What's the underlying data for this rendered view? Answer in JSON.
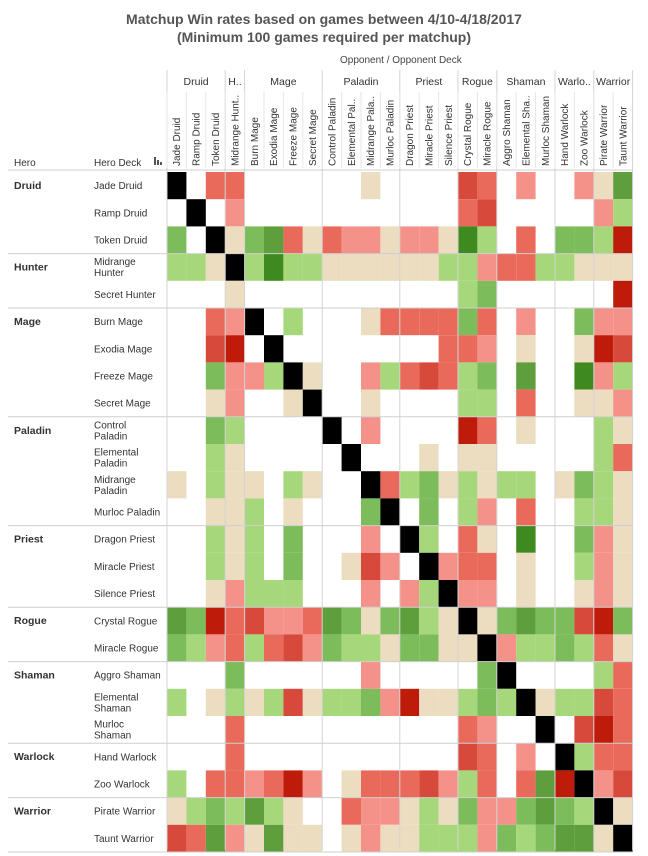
{
  "title_line1": "Matchup Win rates based on games between 4/10-4/18/2017",
  "title_line2": "(Minimum 100 games required per matchup)",
  "column_header": "Opponent  /  Opponent Deck",
  "row_header_hero": "Hero",
  "row_header_deck": "Hero Deck",
  "colors": {
    "self": "#000000",
    "strong_loss": "#bf1b0a",
    "loss": "#d7493a",
    "mild_loss": "#e96a5a",
    "slight_loss": "#f4928a",
    "even": "#ecdcc0",
    "slight_win": "#a6d77a",
    "win": "#7cbc5a",
    "strong_win": "#5e9e3c",
    "very_strong_win": "#3f8a1e"
  },
  "chart_data": {
    "type": "heatmap",
    "title": "Matchup Win rates based on games between 4/10-4/18/2017 (Minimum 100 games required per matchup)",
    "value_scale": "color buckets: -4 strong loss ... 0 even ... +4 strong win; S = same deck; empty = under 100 games",
    "heroes": [
      {
        "name": "Druid",
        "short": "Druid",
        "decks": [
          "Jade Druid",
          "Ramp Druid",
          "Token Druid"
        ]
      },
      {
        "name": "Hunter",
        "short": "H..",
        "decks": [
          "Midrange Hunter",
          "Secret Hunter"
        ]
      },
      {
        "name": "Mage",
        "short": "Mage",
        "decks": [
          "Burn Mage",
          "Exodia Mage",
          "Freeze Mage",
          "Secret Mage"
        ]
      },
      {
        "name": "Paladin",
        "short": "Paladin",
        "decks": [
          "Control Paladin",
          "Elemental Paladin",
          "Midrange Paladin",
          "Murloc Paladin"
        ]
      },
      {
        "name": "Priest",
        "short": "Priest",
        "decks": [
          "Dragon Priest",
          "Miracle Priest",
          "Silence Priest"
        ]
      },
      {
        "name": "Rogue",
        "short": "Rogue",
        "decks": [
          "Crystal Rogue",
          "Miracle Rogue"
        ]
      },
      {
        "name": "Shaman",
        "short": "Shaman",
        "decks": [
          "Aggro Shaman",
          "Elemental Shaman",
          "Murloc Shaman"
        ]
      },
      {
        "name": "Warlock",
        "short": "Warlo..",
        "decks": [
          "Hand Warlock",
          "Zoo Warlock"
        ]
      },
      {
        "name": "Warrior",
        "short": "Warrior",
        "decks": [
          "Pirate Warrior",
          "Taunt Warrior"
        ]
      }
    ],
    "row_labels": [
      "Jade Druid",
      "Ramp Druid",
      "Token Druid",
      "Midrange Hunter",
      "Secret Hunter",
      "Burn Mage",
      "Exodia Mage",
      "Freeze Mage",
      "Secret Mage",
      "Control Paladin",
      "Elemental Paladin",
      "Midrange Paladin",
      "Murloc Paladin",
      "Dragon Priest",
      "Miracle Priest",
      "Silence Priest",
      "Crystal Rogue",
      "Miracle Rogue",
      "Aggro Shaman",
      "Elemental Shaman",
      "Murloc Shaman",
      "Hand Warlock",
      "Zoo Warlock",
      "Pirate Warrior",
      "Taunt Warrior"
    ],
    "row_label_lines": [
      [
        "Jade Druid"
      ],
      [
        "Ramp Druid"
      ],
      [
        "Token Druid"
      ],
      [
        "Midrange",
        "Hunter"
      ],
      [
        "Secret Hunter"
      ],
      [
        "Burn Mage"
      ],
      [
        "Exodia Mage"
      ],
      [
        "Freeze Mage"
      ],
      [
        "Secret Mage"
      ],
      [
        "Control",
        "Paladin"
      ],
      [
        "Elemental",
        "Paladin"
      ],
      [
        "Midrange",
        "Paladin"
      ],
      [
        "Murloc Paladin"
      ],
      [
        "Dragon Priest"
      ],
      [
        "Miracle Priest"
      ],
      [
        "Silence Priest"
      ],
      [
        "Crystal Rogue"
      ],
      [
        "Miracle Rogue"
      ],
      [
        "Aggro Shaman"
      ],
      [
        "Elemental",
        "Shaman"
      ],
      [
        "Murloc",
        "Shaman"
      ],
      [
        "Hand Warlock"
      ],
      [
        "Zoo Warlock"
      ],
      [
        "Pirate Warrior"
      ],
      [
        "Taunt Warrior"
      ]
    ],
    "col_labels": [
      "Jade Druid",
      "Ramp Druid",
      "Token Druid",
      "Midrange Hunt..",
      "Burn Mage",
      "Exodia Mage",
      "Freeze Mage",
      "Secret Mage",
      "Control Paladin",
      "Elemental Pal..",
      "Midrange Pala..",
      "Murloc Paladin",
      "Dragon Priest",
      "Miracle Priest",
      "Silence Priest",
      "Crystal Rogue",
      "Miracle Rogue",
      "Aggro Shaman",
      "Elemental Sha..",
      "Murloc Shaman",
      "Hand Warlock",
      "Zoo Warlock",
      "Pirate Warrior",
      "Taunt Warrior"
    ],
    "col_for_row": [
      0,
      1,
      2,
      3,
      null,
      4,
      5,
      6,
      7,
      8,
      9,
      10,
      11,
      12,
      13,
      14,
      15,
      16,
      17,
      18,
      19,
      20,
      21,
      22,
      23
    ],
    "matrix": [
      [
        "S",
        "",
        -2,
        -2,
        "",
        "",
        "",
        "",
        "",
        "",
        0,
        "",
        "",
        "",
        "",
        -3,
        -2,
        "",
        -1,
        "",
        "",
        -1,
        0,
        3
      ],
      [
        "",
        "S",
        "",
        -1,
        "",
        "",
        "",
        "",
        "",
        "",
        "",
        "",
        "",
        "",
        "",
        -2,
        -3,
        "",
        "",
        "",
        "",
        "",
        -1,
        1
      ],
      [
        2,
        "",
        "S",
        0,
        2,
        3,
        -2,
        0,
        -2,
        -1,
        -1,
        0,
        -1,
        -1,
        0,
        4,
        1,
        "",
        -2,
        "",
        2,
        2,
        1,
        -4
      ],
      [
        1,
        1,
        0,
        "S",
        1,
        4,
        1,
        1,
        0,
        0,
        0,
        0,
        0,
        0,
        1,
        1,
        -1,
        -2,
        -2,
        1,
        1,
        0,
        0,
        0
      ],
      [
        "",
        "",
        "",
        0,
        "",
        "",
        "",
        "",
        "",
        "",
        "",
        "",
        "",
        "",
        "",
        1,
        2,
        "",
        "",
        "",
        "",
        "",
        "",
        -4
      ],
      [
        "",
        "",
        -2,
        -1,
        "S",
        "",
        1,
        "",
        "",
        "",
        0,
        -2,
        -2,
        -2,
        -2,
        2,
        -2,
        "",
        -1,
        "",
        "",
        2,
        -1,
        -1
      ],
      [
        "",
        "",
        -3,
        -4,
        "",
        "S",
        "",
        "",
        "",
        "",
        "",
        "",
        "",
        "",
        "-2",
        -2,
        -1,
        "",
        0,
        "",
        "",
        0,
        -4,
        -3
      ],
      [
        "",
        "",
        2,
        -1,
        -1,
        1,
        "S",
        0,
        "",
        "",
        -1,
        1,
        -2,
        -3,
        -2,
        1,
        2,
        "",
        3,
        "",
        "",
        4,
        -1,
        1
      ],
      [
        "",
        "",
        0,
        -1,
        "",
        "",
        0,
        "S",
        "",
        "",
        0,
        "",
        "",
        "",
        "",
        1,
        1,
        "",
        -2,
        "",
        "",
        0,
        0,
        -1
      ],
      [
        "",
        "",
        2,
        1,
        "",
        "",
        "",
        "",
        "S",
        "",
        -1,
        "",
        "",
        "",
        "",
        -4,
        -2,
        "",
        0,
        "",
        "",
        "",
        1,
        0
      ],
      [
        "",
        "",
        1,
        0,
        "",
        "",
        "",
        "",
        "",
        "S",
        "",
        "",
        "",
        0,
        "",
        0,
        0,
        "",
        "",
        "",
        "",
        "",
        1,
        -2
      ],
      [
        0,
        "",
        1,
        0,
        0,
        "",
        1,
        0,
        "",
        "",
        "S",
        -2,
        1,
        2,
        0,
        1,
        0,
        1,
        1,
        "",
        0,
        2,
        1,
        0
      ],
      [
        "",
        "",
        0,
        0,
        1,
        "",
        0,
        "",
        "",
        "",
        2,
        "S",
        "",
        2,
        "",
        1,
        -1,
        "",
        -2,
        "",
        "",
        1,
        1,
        0
      ],
      [
        "",
        "",
        1,
        0,
        1,
        "",
        2,
        "",
        "",
        "",
        -1,
        "",
        "S",
        1,
        "",
        -2,
        0,
        "",
        4,
        "",
        "",
        2,
        -1,
        0
      ],
      [
        "",
        "",
        1,
        0,
        1,
        "",
        2,
        "",
        "",
        0,
        -3,
        -1,
        "",
        "S",
        -1,
        -2,
        -2,
        "",
        0,
        "",
        "",
        1,
        -1,
        0
      ],
      [
        "",
        "",
        0,
        -1,
        1,
        1,
        1,
        "",
        "",
        "",
        -1,
        "",
        -1,
        1,
        "S",
        -1,
        -1,
        "",
        0,
        "",
        "",
        0,
        -1,
        0
      ],
      [
        3,
        2,
        -4,
        -2,
        -3,
        -1,
        -1,
        -2,
        3,
        2,
        0,
        2,
        3,
        1,
        0,
        "S",
        0,
        2,
        3,
        2,
        2,
        -3,
        -4,
        2
      ],
      [
        2,
        1,
        -1,
        -2,
        1,
        -2,
        -3,
        -1,
        2,
        1,
        1,
        0,
        2,
        2,
        0,
        0,
        "S",
        -1,
        1,
        1,
        2,
        1,
        -2,
        0
      ],
      [
        "",
        "",
        "",
        2,
        "",
        "",
        "",
        "",
        "",
        "",
        -1,
        "",
        "",
        "",
        "",
        "",
        2,
        "S",
        "",
        "",
        "",
        "",
        1,
        -2
      ],
      [
        1,
        "",
        0,
        1,
        0,
        1,
        -3,
        0,
        1,
        1,
        2,
        -1,
        -4,
        0,
        0,
        1,
        2,
        1,
        "S",
        0,
        1,
        1,
        -3,
        -2
      ],
      [
        "",
        "",
        "",
        -2,
        "",
        "",
        "",
        "",
        "",
        "",
        "",
        "",
        "",
        "",
        "",
        -2,
        -1,
        "",
        "",
        "S",
        "",
        -3,
        -4,
        -2
      ],
      [
        "",
        "",
        "",
        -2,
        "",
        "",
        "",
        "",
        "",
        "",
        "",
        "",
        "",
        "",
        "",
        -3,
        -2,
        "",
        -1,
        "",
        "S",
        1,
        -2,
        -2
      ],
      [
        1,
        "",
        -2,
        -2,
        -1,
        -2,
        -4,
        -1,
        "",
        0,
        -2,
        -2,
        -2,
        -3,
        -1,
        1,
        -2,
        "",
        -2,
        3,
        -4,
        "S",
        -1,
        -3
      ],
      [
        0,
        1,
        2,
        1,
        3,
        1,
        0,
        "",
        "",
        -2,
        -1,
        -1,
        0,
        1,
        0,
        2,
        -1,
        -1,
        2,
        3,
        2,
        1,
        "S",
        0
      ],
      [
        -3,
        -2,
        3,
        -1,
        0,
        3,
        0,
        0,
        "",
        0,
        -1,
        0,
        0,
        1,
        1,
        1,
        -1,
        2,
        1,
        2,
        3,
        3,
        0,
        "S"
      ]
    ]
  }
}
